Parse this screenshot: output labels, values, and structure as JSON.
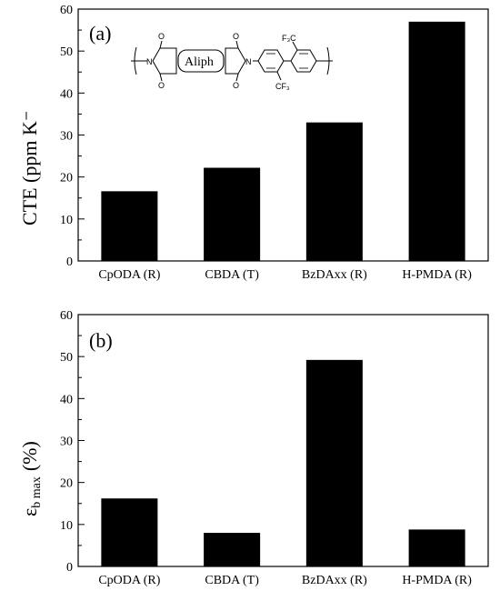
{
  "chart_data": [
    {
      "type": "bar",
      "panel_label": "(a)",
      "ylabel": "CTE (ppm K⁻",
      "categories": [
        "CpODA (R)",
        "CBDA (T)",
        "BzDAxx (R)",
        "H-PMDA (R)"
      ],
      "values": [
        16.6,
        22.2,
        33.0,
        57.0
      ],
      "ylim": [
        0,
        60
      ],
      "yticks": [
        "0",
        "10",
        "20",
        "30",
        "40",
        "50",
        "60"
      ],
      "bar_color": "#000000",
      "grid": false,
      "structure": {
        "box_label": "Aliph",
        "atom_labels": [
          "O",
          "O",
          "O",
          "O",
          "N",
          "N",
          "F₃C",
          "CF₃"
        ]
      }
    },
    {
      "type": "bar",
      "panel_label": "(b)",
      "ylabel": "εb max (%)",
      "ylabel_symbol": "ε",
      "ylabel_subscript": "b max",
      "ylabel_unit": "(%)",
      "categories": [
        "CpODA (R)",
        "CBDA (T)",
        "BzDAxx (R)",
        "H-PMDA (R)"
      ],
      "values": [
        16.2,
        8.0,
        49.2,
        8.8
      ],
      "ylim": [
        0,
        60
      ],
      "yticks": [
        "0",
        "10",
        "20",
        "30",
        "40",
        "50",
        "60"
      ],
      "bar_color": "#000000",
      "grid": false
    }
  ]
}
